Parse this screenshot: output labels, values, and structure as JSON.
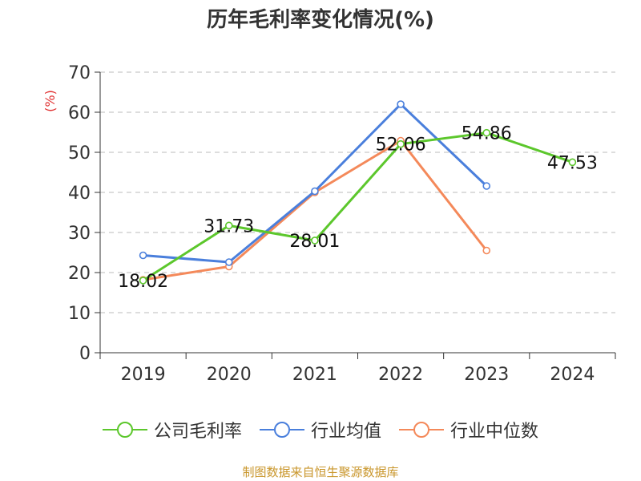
{
  "title": "历年毛利率变化情况(%)",
  "source": "制图数据来自恒生聚源数据库",
  "chart_data": {
    "type": "line",
    "categories": [
      "2019",
      "2020",
      "2021",
      "2022",
      "2023",
      "2024"
    ],
    "ylabel": "(%)",
    "ylim": [
      0,
      70
    ],
    "yticks": [
      0,
      10,
      20,
      30,
      40,
      50,
      60,
      70
    ],
    "grid": true,
    "legend_position": "bottom",
    "series": [
      {
        "name": "公司毛利率",
        "color": "#5cc72c",
        "values": [
          18.02,
          31.73,
          28.01,
          52.06,
          54.86,
          47.53
        ],
        "labels": [
          "18.02",
          "31.73",
          "28.01",
          "52.06",
          "54.86",
          "47.53"
        ]
      },
      {
        "name": "行业均值",
        "color": "#4a7fdc",
        "values": [
          24.3,
          22.6,
          40.3,
          62.0,
          41.6,
          null
        ]
      },
      {
        "name": "行业中位数",
        "color": "#f4895a",
        "values": [
          18.2,
          21.5,
          40.0,
          52.9,
          25.5,
          null
        ]
      }
    ]
  }
}
